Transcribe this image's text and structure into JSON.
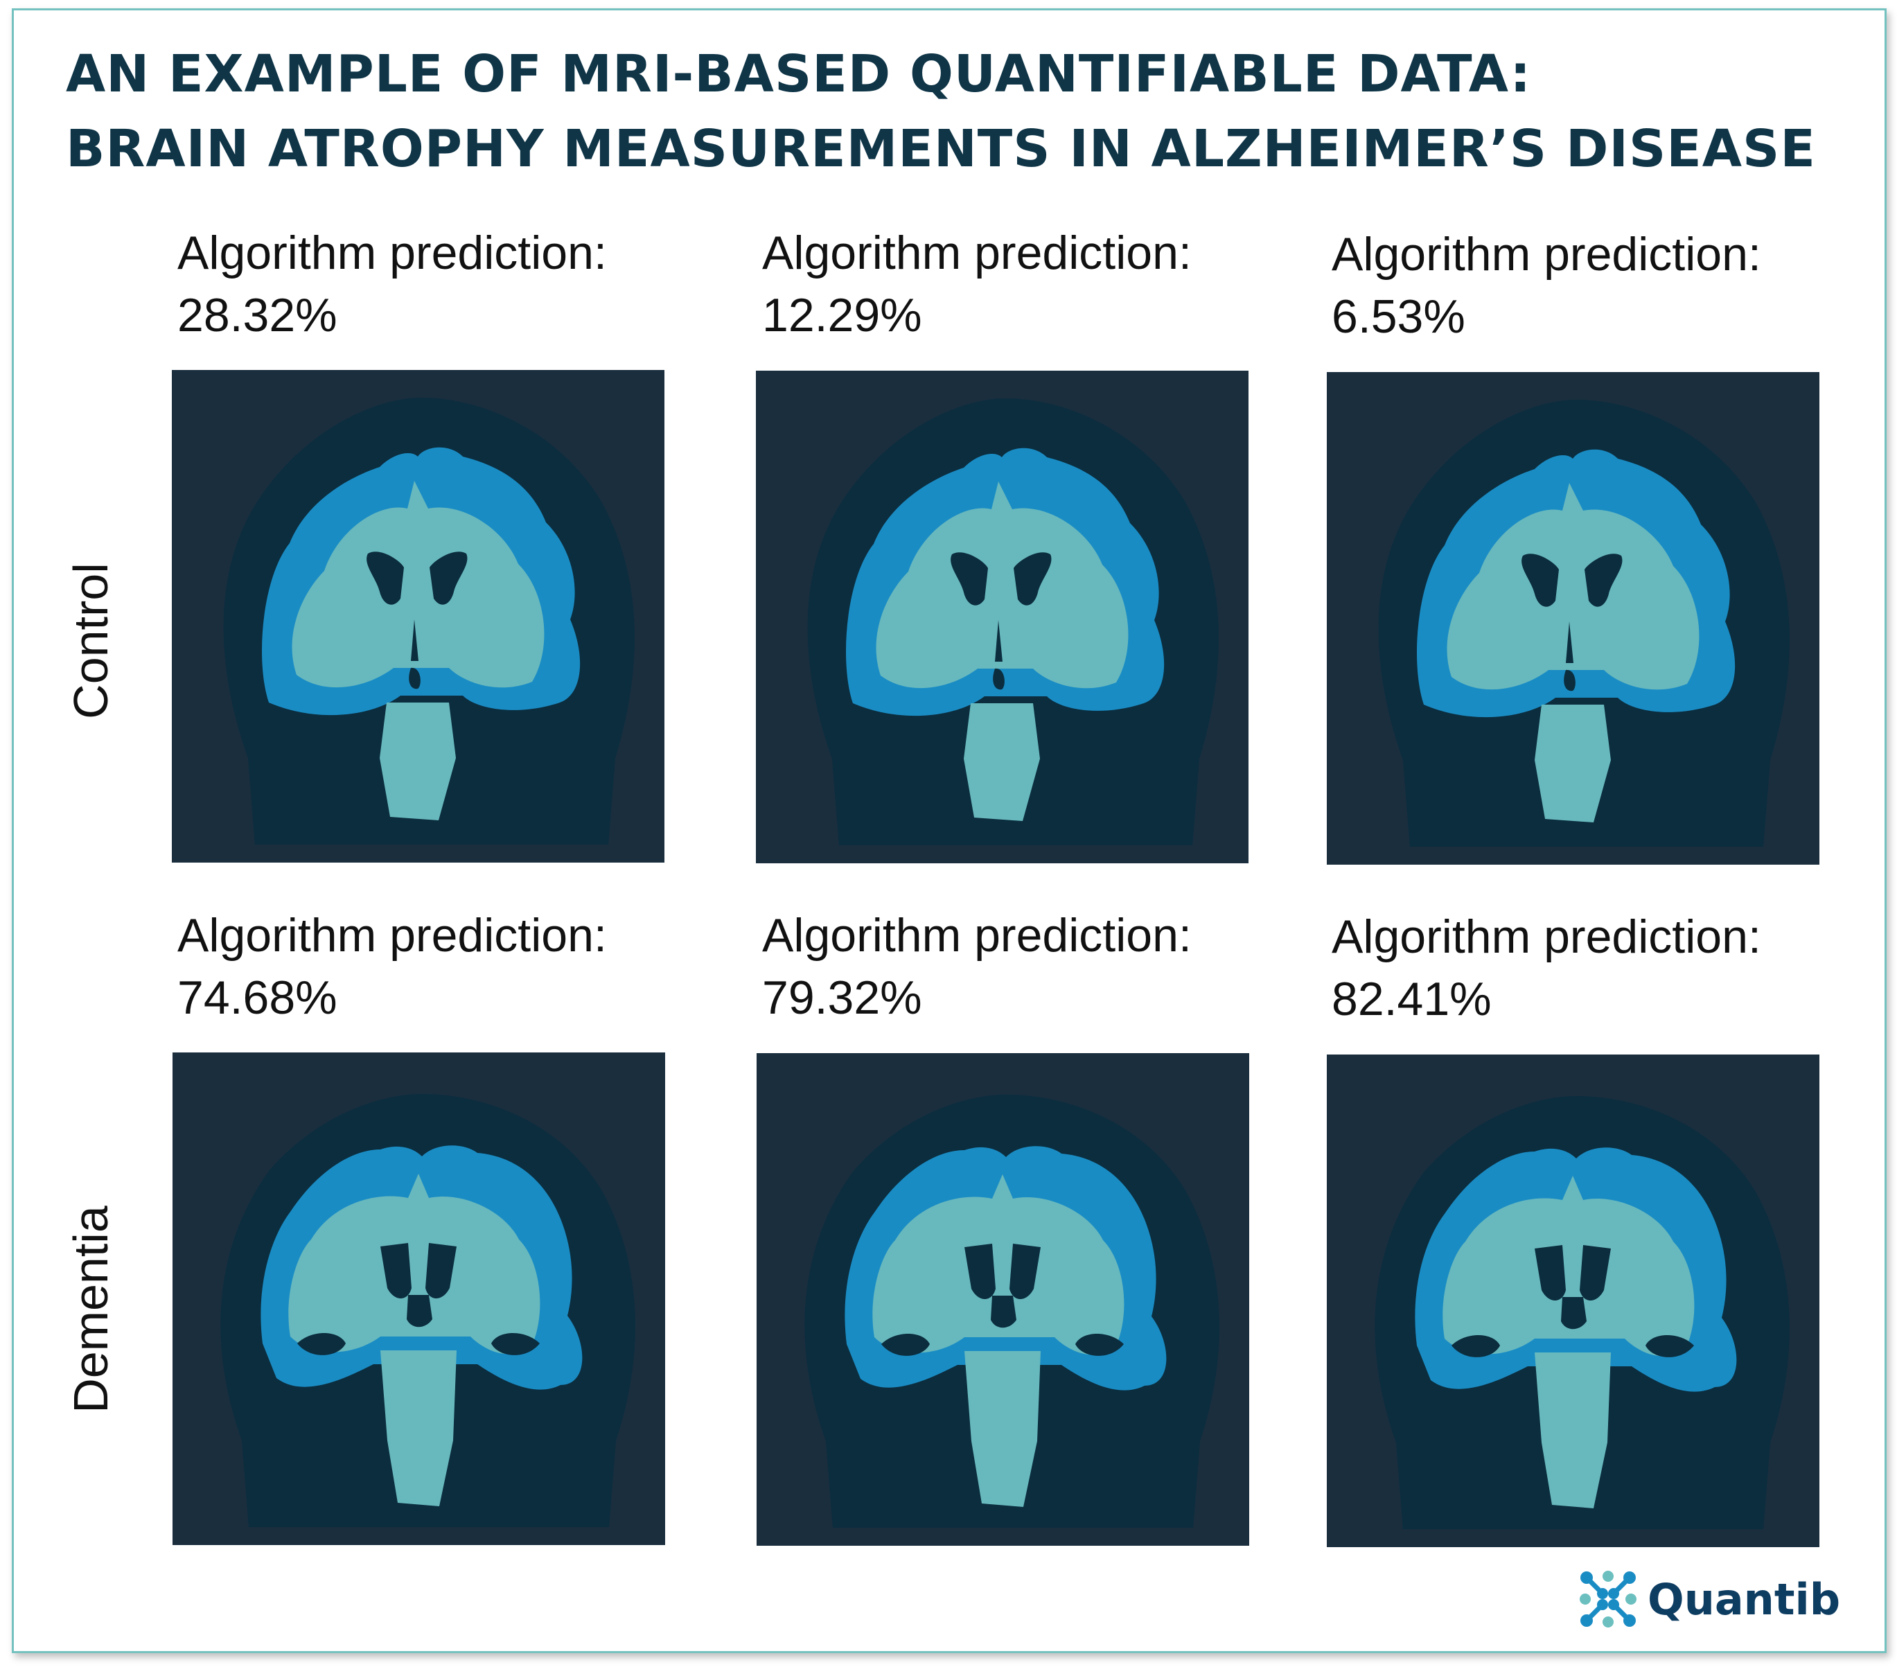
{
  "title": {
    "line1": "AN EXAMPLE OF MRI-BASED QUANTIFIABLE DATA:",
    "line2": "BRAIN ATROPHY MEASUREMENTS IN ALZHEIMER’S DISEASE"
  },
  "rows": [
    {
      "label": "Control",
      "panels": [
        {
          "caption": "Algorithm prediction:",
          "value": "28.32%"
        },
        {
          "caption": "Algorithm prediction:",
          "value": "12.29%"
        },
        {
          "caption": "Algorithm prediction:",
          "value": "6.53%"
        }
      ]
    },
    {
      "label": "Dementia",
      "panels": [
        {
          "caption": "Algorithm prediction:",
          "value": "74.68%"
        },
        {
          "caption": "Algorithm prediction:",
          "value": "79.32%"
        },
        {
          "caption": "Algorithm prediction:",
          "value": "82.41%"
        }
      ]
    }
  ],
  "logo": {
    "text": "Quantib"
  },
  "colors": {
    "title": "#0f3547",
    "panel_bg": "#1a2e3e",
    "head": "#0b2d3e",
    "gray_matter": "#1a8cc4",
    "white_matter": "#68b9bd",
    "border": "#74c2c0"
  }
}
